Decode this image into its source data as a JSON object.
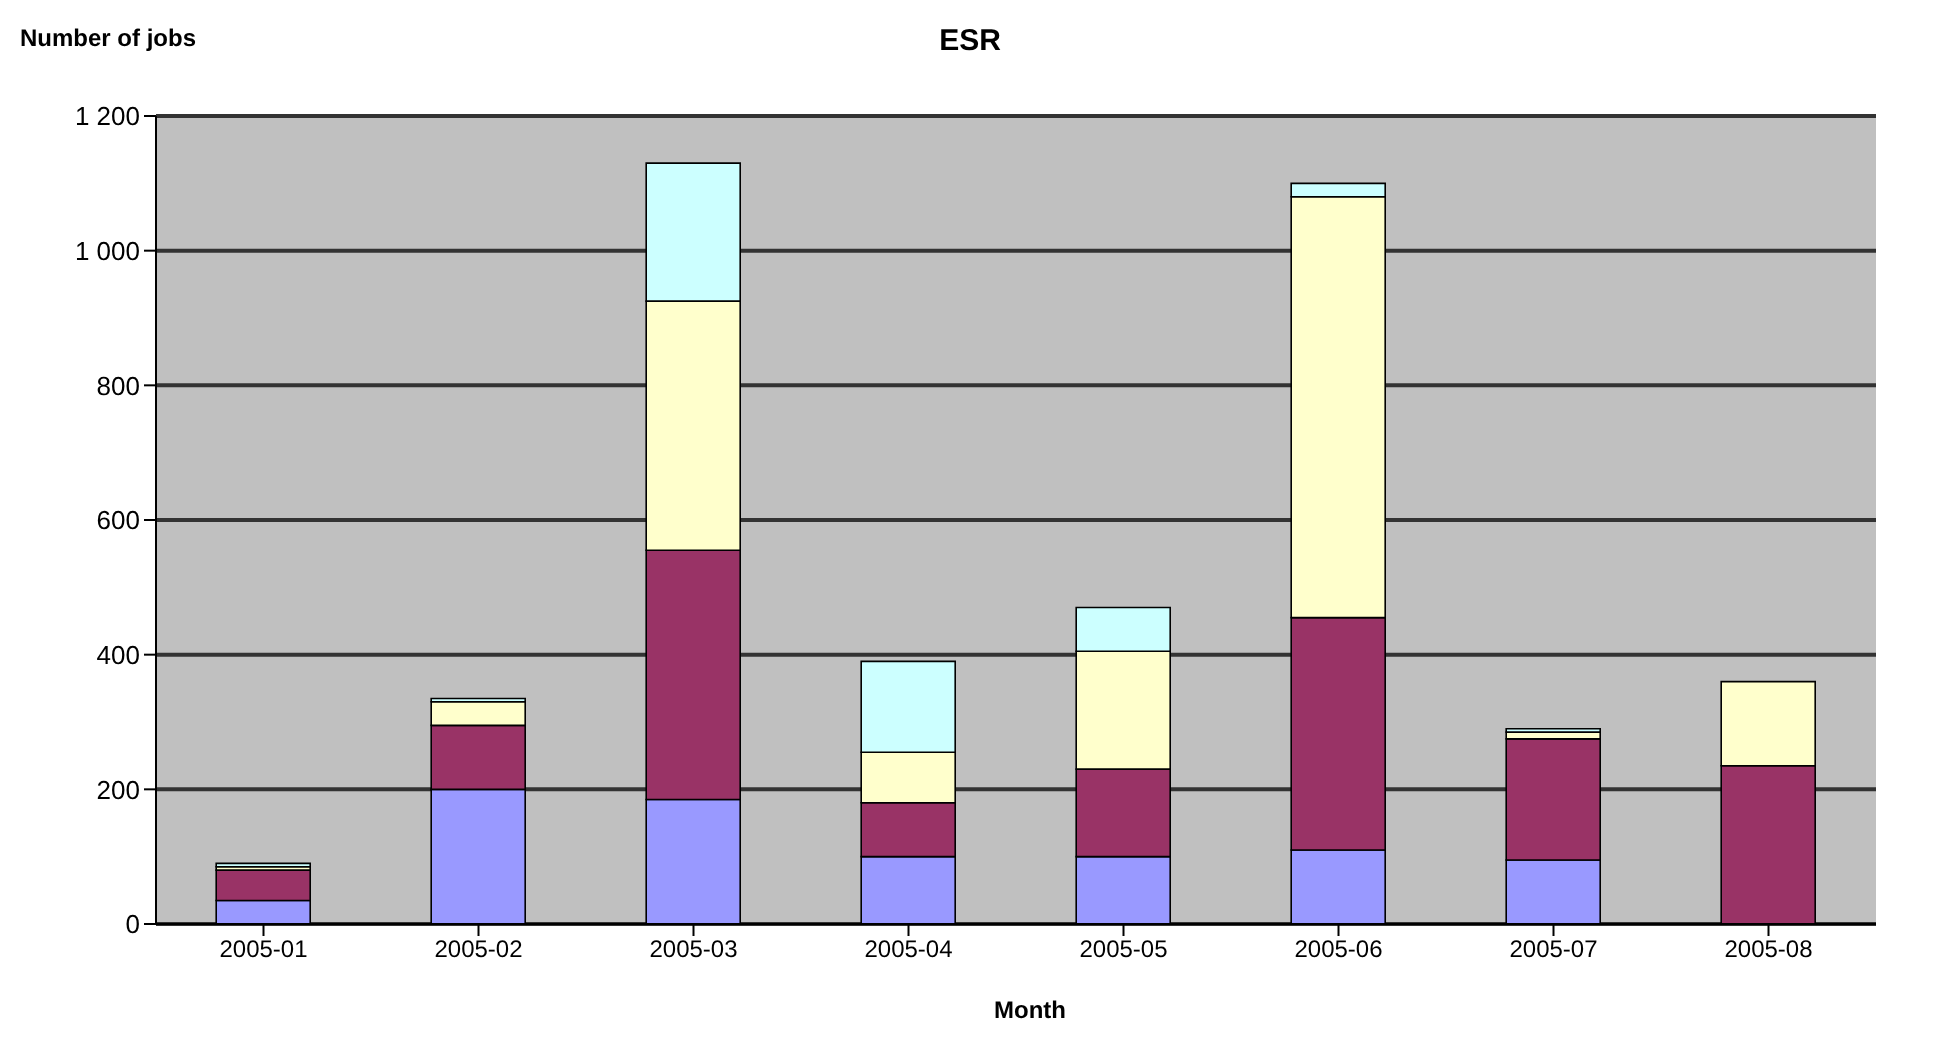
{
  "chart_data": {
    "type": "bar",
    "title": "ESR",
    "ylabel": "Number of jobs",
    "xlabel": "Month",
    "categories": [
      "2005-01",
      "2005-02",
      "2005-03",
      "2005-04",
      "2005-05",
      "2005-06",
      "2005-07",
      "2005-08"
    ],
    "stacked": true,
    "series": [
      {
        "color": "#9999ff",
        "values": [
          35,
          200,
          185,
          100,
          100,
          110,
          95,
          null
        ]
      },
      {
        "color": "#993366",
        "values": [
          45,
          95,
          370,
          80,
          130,
          345,
          180,
          235
        ]
      },
      {
        "color": "#ffffcc",
        "values": [
          5,
          35,
          370,
          75,
          175,
          625,
          10,
          125
        ]
      },
      {
        "color": "#ccffff",
        "values": [
          5,
          5,
          205,
          135,
          65,
          20,
          5,
          null
        ]
      }
    ],
    "ylim": [
      0,
      1200
    ],
    "yticks": [
      0,
      200,
      400,
      600,
      800,
      {
        "value": 1000,
        "label": "1 000"
      },
      {
        "value": 1200,
        "label": "1 200"
      }
    ],
    "grid": "y"
  }
}
